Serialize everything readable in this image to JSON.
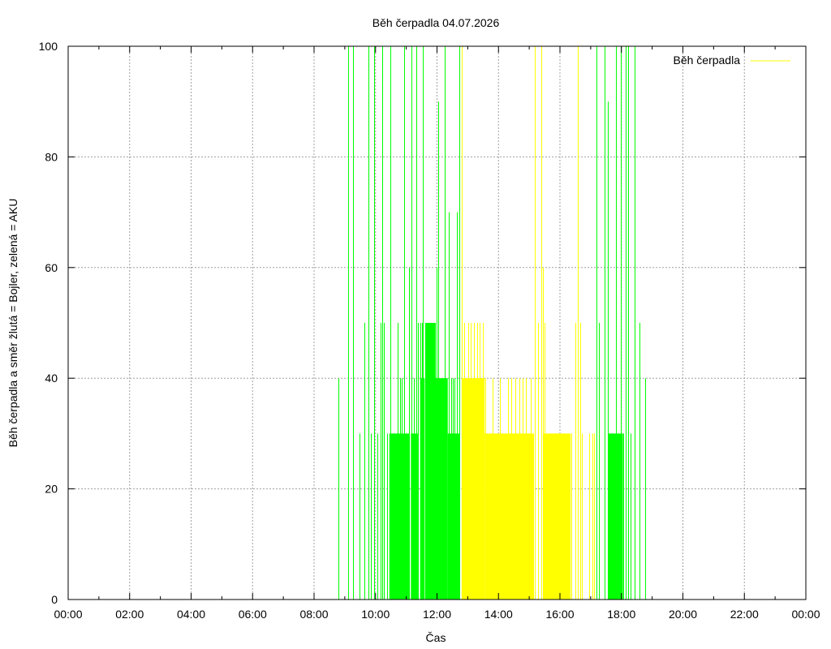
{
  "chart_data": {
    "type": "bar",
    "title": "Běh čerpadla 04.07.2026",
    "xlabel": "Čas",
    "ylabel": "Běh čerpadla a směr žlutá = Bojler, zelená = AKU",
    "xlim": [
      0,
      24
    ],
    "ylim": [
      0,
      100
    ],
    "x_ticks": [
      "00:00",
      "02:00",
      "04:00",
      "06:00",
      "08:00",
      "10:00",
      "12:00",
      "14:00",
      "16:00",
      "18:00",
      "20:00",
      "22:00",
      "00:00"
    ],
    "y_ticks": [
      "0",
      "20",
      "40",
      "60",
      "80",
      "100"
    ],
    "grid": true,
    "legend": {
      "position": "top-right",
      "entries": [
        "Běh čerpadla"
      ]
    },
    "colors": {
      "AKU": "#00ff00",
      "Bojler": "#ffff00",
      "grid": "#a0a0a0"
    },
    "series": [
      {
        "name": "Běh čerpadla",
        "direction": "AKU",
        "color": "#00ff00",
        "points": [
          [
            8.78,
            40
          ],
          [
            9.12,
            100
          ],
          [
            9.28,
            100
          ],
          [
            9.48,
            30
          ],
          [
            9.65,
            50
          ],
          [
            9.78,
            100
          ],
          [
            9.85,
            30
          ],
          [
            9.96,
            100
          ],
          [
            10.05,
            30
          ],
          [
            10.17,
            50
          ],
          [
            10.23,
            100
          ],
          [
            10.28,
            50
          ],
          [
            10.38,
            30
          ],
          [
            10.48,
            100
          ],
          [
            10.55,
            30
          ],
          [
            10.62,
            30
          ],
          [
            10.68,
            30
          ],
          [
            10.73,
            50
          ],
          [
            10.8,
            40
          ],
          [
            10.86,
            40
          ],
          [
            10.93,
            100
          ],
          [
            11.1,
            60
          ],
          [
            11.17,
            100
          ],
          [
            11.25,
            40
          ],
          [
            11.33,
            100
          ],
          [
            11.38,
            50
          ],
          [
            11.45,
            50
          ],
          [
            11.5,
            50
          ],
          [
            11.55,
            100
          ],
          [
            11.62,
            50
          ],
          [
            11.68,
            50
          ],
          [
            11.72,
            40
          ],
          [
            11.78,
            50
          ],
          [
            11.83,
            50
          ],
          [
            11.88,
            40
          ],
          [
            11.93,
            50
          ],
          [
            11.98,
            60
          ],
          [
            12.05,
            90
          ],
          [
            12.1,
            40
          ],
          [
            12.15,
            40
          ],
          [
            12.2,
            40
          ],
          [
            12.25,
            100
          ],
          [
            12.3,
            40
          ],
          [
            12.38,
            70
          ],
          [
            12.45,
            40
          ],
          [
            12.52,
            40
          ],
          [
            12.58,
            40
          ],
          [
            12.65,
            70
          ],
          [
            12.72,
            100
          ],
          [
            17.2,
            100
          ],
          [
            17.28,
            50
          ],
          [
            17.45,
            100
          ],
          [
            17.55,
            90
          ],
          [
            17.62,
            30
          ],
          [
            17.68,
            30
          ],
          [
            17.75,
            30
          ],
          [
            17.82,
            100
          ],
          [
            17.9,
            30
          ],
          [
            17.97,
            100
          ],
          [
            18.05,
            30
          ],
          [
            18.15,
            100
          ],
          [
            18.22,
            100
          ],
          [
            18.3,
            30
          ],
          [
            18.42,
            100
          ],
          [
            18.58,
            50
          ],
          [
            18.77,
            40
          ]
        ],
        "spans": [
          {
            "from": 10.45,
            "to": 11.1,
            "value": 30
          },
          {
            "from": 11.15,
            "to": 11.38,
            "value": 30
          },
          {
            "from": 11.45,
            "to": 11.6,
            "value": 40
          },
          {
            "from": 11.62,
            "to": 11.95,
            "value": 50
          },
          {
            "from": 11.95,
            "to": 12.35,
            "value": 40
          },
          {
            "from": 12.35,
            "to": 12.75,
            "value": 30
          },
          {
            "from": 17.58,
            "to": 18.05,
            "value": 30
          }
        ]
      },
      {
        "name": "Běh čerpadla",
        "direction": "Bojler",
        "color": "#ffff00",
        "points": [
          [
            12.8,
            100
          ],
          [
            12.88,
            50
          ],
          [
            13.02,
            50
          ],
          [
            13.1,
            50
          ],
          [
            13.2,
            50
          ],
          [
            13.3,
            50
          ],
          [
            13.38,
            50
          ],
          [
            13.48,
            50
          ],
          [
            13.58,
            40
          ],
          [
            13.72,
            30
          ],
          [
            13.82,
            40
          ],
          [
            13.9,
            30
          ],
          [
            14.05,
            40
          ],
          [
            14.15,
            30
          ],
          [
            14.3,
            40
          ],
          [
            14.42,
            40
          ],
          [
            14.55,
            40
          ],
          [
            14.68,
            40
          ],
          [
            14.78,
            40
          ],
          [
            14.88,
            40
          ],
          [
            14.95,
            30
          ],
          [
            15.05,
            40
          ],
          [
            15.12,
            30
          ],
          [
            15.18,
            100
          ],
          [
            15.28,
            50
          ],
          [
            15.38,
            100
          ],
          [
            15.45,
            60
          ],
          [
            15.5,
            50
          ],
          [
            15.58,
            30
          ],
          [
            15.65,
            30
          ],
          [
            15.72,
            30
          ],
          [
            15.8,
            30
          ],
          [
            15.88,
            30
          ],
          [
            15.98,
            30
          ],
          [
            16.08,
            30
          ],
          [
            16.18,
            30
          ],
          [
            16.28,
            30
          ],
          [
            16.38,
            30
          ],
          [
            16.5,
            50
          ],
          [
            16.58,
            100
          ],
          [
            16.65,
            50
          ],
          [
            16.72,
            30
          ],
          [
            16.95,
            30
          ],
          [
            17.05,
            30
          ],
          [
            17.12,
            30
          ]
        ],
        "spans": [
          {
            "from": 12.8,
            "to": 13.55,
            "value": 40
          },
          {
            "from": 13.55,
            "to": 15.15,
            "value": 30
          },
          {
            "from": 15.45,
            "to": 16.35,
            "value": 30
          }
        ]
      }
    ]
  }
}
